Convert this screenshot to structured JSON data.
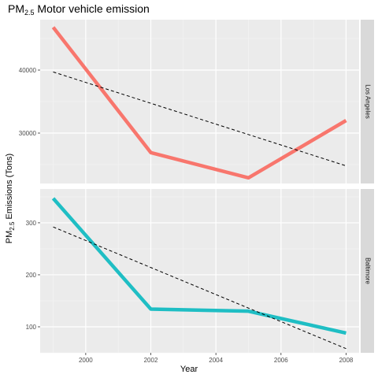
{
  "chart_data": {
    "type": "line",
    "title_main": "PM",
    "title_sub": "2.5",
    "title_rest": " Motor vehicle emission",
    "xlabel": "Year",
    "ylabel_main": "PM",
    "ylabel_sub": "2.5",
    "ylabel_rest": " Emissions (Tons)",
    "x_ticks": [
      2000,
      2002,
      2004,
      2006,
      2008
    ],
    "x_tick_labels": [
      "2000",
      "2002",
      "2004",
      "2006",
      "2008"
    ],
    "xlim": [
      1998.6,
      2008.4
    ],
    "grid": true,
    "facets": [
      {
        "strip_label": "Los Angeles",
        "color": "#f8766d",
        "ylim": [
          22000,
          48000
        ],
        "y_ticks": [
          30000,
          40000
        ],
        "y_tick_labels": [
          "30000",
          "40000"
        ],
        "series": {
          "x": [
            1999,
            2002,
            2005,
            2008
          ],
          "y": [
            46800,
            26900,
            22900,
            32000
          ]
        },
        "trend": {
          "x": [
            1999,
            2008
          ],
          "y": [
            39700,
            24800
          ]
        }
      },
      {
        "strip_label": "Baltimore",
        "color": "#1fbec4",
        "ylim": [
          50,
          365
        ],
        "y_ticks": [
          100,
          200,
          300
        ],
        "y_tick_labels": [
          "100",
          "200",
          "300"
        ],
        "series": {
          "x": [
            1999,
            2002,
            2005,
            2008
          ],
          "y": [
            347,
            134,
            130,
            88
          ]
        },
        "trend": {
          "x": [
            1999,
            2008
          ],
          "y": [
            292,
            58
          ]
        }
      }
    ]
  }
}
